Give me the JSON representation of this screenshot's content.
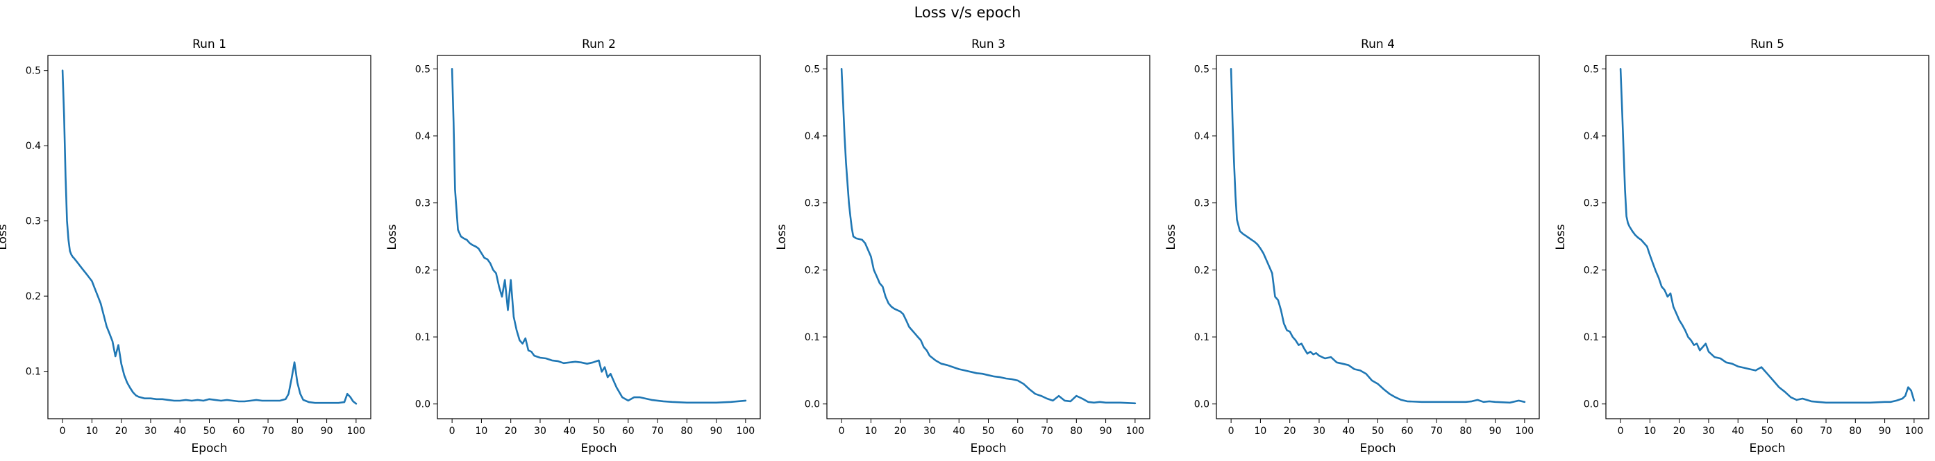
{
  "figure": {
    "title": "Loss v/s epoch"
  },
  "colors": {
    "line": "#1f77b4"
  },
  "chart_data": [
    {
      "type": "line",
      "title": "Run 1",
      "xlabel": "Epoch",
      "ylabel": "Loss",
      "xlim": [
        -5,
        105
      ],
      "ylim": [
        0.037,
        0.52
      ],
      "xticks": [
        0,
        10,
        20,
        30,
        40,
        50,
        60,
        70,
        80,
        90,
        100
      ],
      "yticks": [
        0.1,
        0.2,
        0.3,
        0.4,
        0.5
      ],
      "grid": false,
      "series": [
        {
          "x": [
            0,
            0.5,
            1,
            1.5,
            2,
            2.5,
            3,
            3.5,
            4,
            5,
            6,
            7,
            8,
            9,
            10,
            11,
            12,
            13,
            14,
            15,
            16,
            17,
            18,
            19,
            20,
            21,
            22,
            23,
            24,
            25,
            26,
            27,
            28,
            30,
            32,
            34,
            36,
            38,
            40,
            42,
            44,
            46,
            48,
            50,
            52,
            54,
            56,
            58,
            60,
            62,
            64,
            66,
            68,
            70,
            72,
            74,
            75,
            76,
            77,
            78,
            79,
            80,
            81,
            82,
            84,
            86,
            88,
            90,
            92,
            94,
            96,
            97,
            98,
            99,
            100
          ],
          "y": [
            0.5,
            0.44,
            0.36,
            0.3,
            0.275,
            0.26,
            0.255,
            0.252,
            0.25,
            0.245,
            0.24,
            0.235,
            0.23,
            0.225,
            0.22,
            0.21,
            0.2,
            0.19,
            0.175,
            0.16,
            0.15,
            0.14,
            0.12,
            0.135,
            0.11,
            0.095,
            0.085,
            0.078,
            0.072,
            0.068,
            0.066,
            0.065,
            0.064,
            0.064,
            0.063,
            0.063,
            0.062,
            0.061,
            0.061,
            0.062,
            0.061,
            0.062,
            0.061,
            0.063,
            0.062,
            0.061,
            0.062,
            0.061,
            0.06,
            0.06,
            0.061,
            0.062,
            0.061,
            0.061,
            0.061,
            0.061,
            0.062,
            0.063,
            0.07,
            0.09,
            0.112,
            0.085,
            0.07,
            0.062,
            0.059,
            0.058,
            0.058,
            0.058,
            0.058,
            0.058,
            0.059,
            0.07,
            0.066,
            0.06,
            0.057
          ]
        }
      ]
    },
    {
      "type": "line",
      "title": "Run 2",
      "xlabel": "Epoch",
      "ylabel": "Loss",
      "xlim": [
        -5,
        105
      ],
      "ylim": [
        -0.022,
        0.52
      ],
      "xticks": [
        0,
        10,
        20,
        30,
        40,
        50,
        60,
        70,
        80,
        90,
        100
      ],
      "yticks": [
        0.0,
        0.1,
        0.2,
        0.3,
        0.4,
        0.5
      ],
      "grid": false,
      "series": [
        {
          "x": [
            0,
            0.5,
            1,
            1.5,
            2,
            3,
            4,
            5,
            6,
            7,
            8,
            9,
            10,
            11,
            12,
            13,
            14,
            15,
            16,
            17,
            18,
            19,
            20,
            21,
            22,
            23,
            24,
            25,
            26,
            27,
            28,
            30,
            32,
            34,
            36,
            38,
            40,
            42,
            44,
            46,
            48,
            50,
            51,
            52,
            53,
            54,
            55,
            56,
            58,
            60,
            62,
            64,
            66,
            68,
            70,
            72,
            75,
            80,
            85,
            90,
            95,
            100
          ],
          "y": [
            0.5,
            0.42,
            0.32,
            0.29,
            0.26,
            0.25,
            0.247,
            0.245,
            0.24,
            0.237,
            0.235,
            0.232,
            0.225,
            0.218,
            0.216,
            0.21,
            0.2,
            0.195,
            0.175,
            0.16,
            0.185,
            0.14,
            0.185,
            0.13,
            0.11,
            0.095,
            0.09,
            0.098,
            0.08,
            0.078,
            0.072,
            0.069,
            0.068,
            0.065,
            0.064,
            0.061,
            0.062,
            0.063,
            0.062,
            0.06,
            0.062,
            0.065,
            0.048,
            0.055,
            0.04,
            0.045,
            0.035,
            0.025,
            0.01,
            0.005,
            0.01,
            0.01,
            0.008,
            0.006,
            0.005,
            0.004,
            0.003,
            0.002,
            0.002,
            0.002,
            0.003,
            0.005
          ]
        }
      ]
    },
    {
      "type": "line",
      "title": "Run 3",
      "xlabel": "Epoch",
      "ylabel": "Loss",
      "xlim": [
        -5,
        105
      ],
      "ylim": [
        -0.022,
        0.52
      ],
      "xticks": [
        0,
        10,
        20,
        30,
        40,
        50,
        60,
        70,
        80,
        90,
        100
      ],
      "yticks": [
        0.0,
        0.1,
        0.2,
        0.3,
        0.4,
        0.5
      ],
      "grid": false,
      "series": [
        {
          "x": [
            0,
            0.5,
            1,
            1.5,
            2,
            2.5,
            3,
            3.5,
            4,
            5,
            6,
            7,
            8,
            9,
            10,
            11,
            12,
            13,
            14,
            15,
            16,
            17,
            18,
            19,
            20,
            21,
            22,
            23,
            24,
            25,
            26,
            27,
            28,
            29,
            30,
            32,
            34,
            36,
            38,
            40,
            42,
            44,
            46,
            48,
            50,
            52,
            54,
            56,
            58,
            60,
            62,
            64,
            66,
            68,
            70,
            72,
            74,
            76,
            78,
            80,
            82,
            84,
            86,
            88,
            90,
            95,
            100
          ],
          "y": [
            0.5,
            0.45,
            0.4,
            0.36,
            0.33,
            0.3,
            0.28,
            0.262,
            0.25,
            0.247,
            0.246,
            0.245,
            0.24,
            0.23,
            0.22,
            0.2,
            0.19,
            0.18,
            0.175,
            0.16,
            0.15,
            0.145,
            0.142,
            0.14,
            0.138,
            0.134,
            0.125,
            0.115,
            0.11,
            0.105,
            0.1,
            0.095,
            0.085,
            0.08,
            0.072,
            0.065,
            0.06,
            0.058,
            0.055,
            0.052,
            0.05,
            0.048,
            0.046,
            0.045,
            0.043,
            0.041,
            0.04,
            0.038,
            0.037,
            0.035,
            0.03,
            0.022,
            0.015,
            0.012,
            0.008,
            0.005,
            0.012,
            0.005,
            0.004,
            0.012,
            0.008,
            0.003,
            0.002,
            0.003,
            0.002,
            0.002,
            0.001
          ]
        }
      ]
    },
    {
      "type": "line",
      "title": "Run 4",
      "xlabel": "Epoch",
      "ylabel": "Loss",
      "xlim": [
        -5,
        105
      ],
      "ylim": [
        -0.022,
        0.52
      ],
      "xticks": [
        0,
        10,
        20,
        30,
        40,
        50,
        60,
        70,
        80,
        90,
        100
      ],
      "yticks": [
        0.0,
        0.1,
        0.2,
        0.3,
        0.4,
        0.5
      ],
      "grid": false,
      "series": [
        {
          "x": [
            0,
            0.5,
            1,
            1.5,
            2,
            3,
            4,
            5,
            6,
            7,
            8,
            9,
            10,
            11,
            12,
            13,
            14,
            15,
            16,
            17,
            18,
            19,
            20,
            21,
            22,
            23,
            24,
            25,
            26,
            27,
            28,
            29,
            30,
            32,
            34,
            36,
            38,
            40,
            42,
            44,
            46,
            48,
            50,
            52,
            54,
            56,
            58,
            60,
            65,
            70,
            75,
            80,
            82,
            84,
            86,
            88,
            90,
            95,
            98,
            100
          ],
          "y": [
            0.5,
            0.42,
            0.36,
            0.31,
            0.275,
            0.258,
            0.254,
            0.251,
            0.248,
            0.245,
            0.242,
            0.238,
            0.232,
            0.225,
            0.215,
            0.205,
            0.195,
            0.16,
            0.155,
            0.14,
            0.12,
            0.11,
            0.108,
            0.1,
            0.095,
            0.088,
            0.09,
            0.082,
            0.075,
            0.078,
            0.074,
            0.076,
            0.072,
            0.068,
            0.07,
            0.062,
            0.06,
            0.058,
            0.052,
            0.05,
            0.045,
            0.035,
            0.03,
            0.022,
            0.015,
            0.01,
            0.006,
            0.004,
            0.003,
            0.003,
            0.003,
            0.003,
            0.004,
            0.006,
            0.003,
            0.004,
            0.003,
            0.002,
            0.005,
            0.003
          ]
        }
      ]
    },
    {
      "type": "line",
      "title": "Run 5",
      "xlabel": "Epoch",
      "ylabel": "Loss",
      "xlim": [
        -5,
        105
      ],
      "ylim": [
        -0.022,
        0.52
      ],
      "xticks": [
        0,
        10,
        20,
        30,
        40,
        50,
        60,
        70,
        80,
        90,
        100
      ],
      "yticks": [
        0.0,
        0.1,
        0.2,
        0.3,
        0.4,
        0.5
      ],
      "grid": false,
      "series": [
        {
          "x": [
            0,
            0.5,
            1,
            1.5,
            2,
            2.5,
            3,
            4,
            5,
            6,
            7,
            8,
            9,
            10,
            11,
            12,
            13,
            14,
            15,
            16,
            17,
            18,
            19,
            20,
            21,
            22,
            23,
            24,
            25,
            26,
            27,
            28,
            29,
            30,
            32,
            34,
            36,
            38,
            40,
            42,
            44,
            46,
            48,
            50,
            52,
            54,
            56,
            58,
            60,
            62,
            65,
            70,
            75,
            80,
            85,
            90,
            92,
            94,
            96,
            97,
            98,
            99,
            100
          ],
          "y": [
            0.5,
            0.44,
            0.38,
            0.32,
            0.28,
            0.27,
            0.265,
            0.258,
            0.252,
            0.248,
            0.245,
            0.24,
            0.235,
            0.222,
            0.21,
            0.198,
            0.188,
            0.175,
            0.17,
            0.16,
            0.165,
            0.145,
            0.135,
            0.125,
            0.118,
            0.11,
            0.1,
            0.095,
            0.088,
            0.09,
            0.08,
            0.085,
            0.09,
            0.078,
            0.07,
            0.068,
            0.062,
            0.06,
            0.056,
            0.054,
            0.052,
            0.05,
            0.055,
            0.045,
            0.035,
            0.025,
            0.018,
            0.01,
            0.006,
            0.008,
            0.004,
            0.002,
            0.002,
            0.002,
            0.002,
            0.003,
            0.003,
            0.005,
            0.008,
            0.012,
            0.025,
            0.02,
            0.005
          ]
        }
      ]
    }
  ]
}
